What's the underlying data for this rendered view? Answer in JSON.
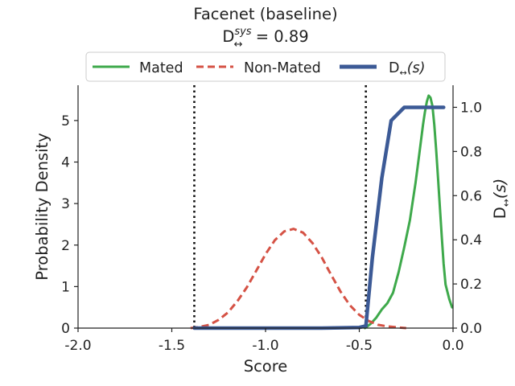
{
  "chart_data": {
    "type": "line",
    "title": "Facenet (baseline)",
    "subtitle": {
      "base": "D",
      "sup": "sys",
      "sub": "↔",
      "rest": " = 0.89"
    },
    "xlabel": "Score",
    "ylabel": "Probability Density",
    "y2label": {
      "base": "D",
      "sub": "↔",
      "rest": "(s)"
    },
    "xlim": [
      -2.0,
      0.0
    ],
    "ylim": [
      0,
      5.85
    ],
    "y2lim": [
      0,
      1.1
    ],
    "xticks": [
      -2.0,
      -1.5,
      -1.0,
      -0.5,
      0.0
    ],
    "xtick_labels": [
      "-2.0",
      "-1.5",
      "-1.0",
      "-0.5",
      "0.0"
    ],
    "yticks": [
      0,
      1,
      2,
      3,
      4,
      5
    ],
    "ytick_labels": [
      "0",
      "1",
      "2",
      "3",
      "4",
      "5"
    ],
    "y2ticks": [
      0.0,
      0.2,
      0.4,
      0.6,
      0.8,
      1.0
    ],
    "y2tick_labels": [
      "0.0",
      "0.2",
      "0.4",
      "0.6",
      "0.8",
      "1.0"
    ],
    "legend_position": "top-center-outside",
    "thresholds": [
      -1.38,
      -0.465
    ],
    "series": [
      {
        "name": "Mated",
        "axis": "left",
        "color": "#3ea94b",
        "dash": "solid",
        "x": [
          -0.47,
          -0.44,
          -0.41,
          -0.38,
          -0.35,
          -0.32,
          -0.29,
          -0.26,
          -0.23,
          -0.2,
          -0.18,
          -0.16,
          -0.15,
          -0.14,
          -0.13,
          -0.12,
          -0.11,
          -0.1,
          -0.09,
          -0.08,
          -0.07,
          -0.06,
          -0.05,
          -0.04,
          -0.02,
          -0.005
        ],
        "values": [
          0.0,
          0.1,
          0.25,
          0.45,
          0.6,
          0.85,
          1.35,
          1.95,
          2.6,
          3.5,
          4.2,
          4.9,
          5.2,
          5.45,
          5.6,
          5.55,
          5.35,
          4.9,
          4.3,
          3.6,
          2.9,
          2.2,
          1.55,
          1.05,
          0.7,
          0.5
        ]
      },
      {
        "name": "Non-Mated",
        "axis": "left",
        "color": "#d55245",
        "dash": "dashed",
        "x": [
          -1.4,
          -1.35,
          -1.3,
          -1.25,
          -1.2,
          -1.15,
          -1.1,
          -1.05,
          -1.0,
          -0.95,
          -0.9,
          -0.85,
          -0.8,
          -0.75,
          -0.7,
          -0.65,
          -0.6,
          -0.55,
          -0.5,
          -0.45,
          -0.4,
          -0.35,
          -0.3,
          -0.25
        ],
        "values": [
          0.0,
          0.03,
          0.08,
          0.2,
          0.38,
          0.65,
          0.98,
          1.38,
          1.78,
          2.12,
          2.33,
          2.39,
          2.3,
          2.05,
          1.7,
          1.28,
          0.88,
          0.55,
          0.32,
          0.17,
          0.08,
          0.04,
          0.02,
          0.0
        ]
      },
      {
        "name": "D↔(s)",
        "axis": "right",
        "color": "#3c5a96",
        "dash": "solid",
        "x": [
          -1.38,
          -1.3,
          -1.0,
          -0.7,
          -0.5,
          -0.465,
          -0.43,
          -0.38,
          -0.33,
          -0.26,
          -0.2,
          -0.15,
          -0.1,
          -0.05
        ],
        "values": [
          0.0,
          0.0,
          0.0,
          0.0,
          0.003,
          0.01,
          0.32,
          0.68,
          0.94,
          1.0,
          1.0,
          1.0,
          1.0,
          1.0
        ]
      }
    ]
  }
}
